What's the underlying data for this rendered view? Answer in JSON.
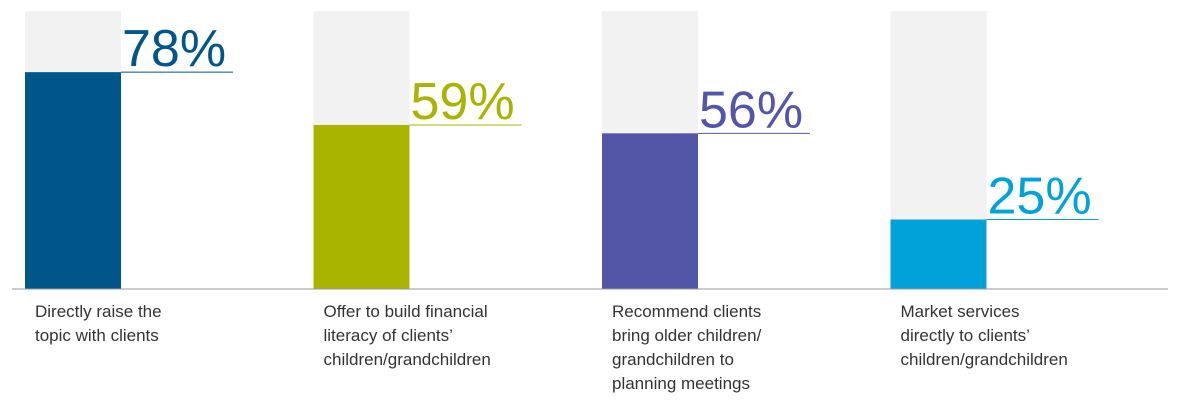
{
  "chart_data": {
    "type": "bar",
    "categories": [
      "Directly raise the\ntopic with clients",
      "Offer to build financial\nliteracy of clients’\nchildren/grandchildren",
      "Recommend clients\nbring older children/\ngrandchildren to\nplanning meetings",
      "Market services\ndirectly to clients’\nchildren/grandchildren"
    ],
    "values": [
      78,
      59,
      56,
      25
    ],
    "value_labels": [
      "78%",
      "59%",
      "56%",
      "25%"
    ],
    "colors": [
      "#005589",
      "#a9b400",
      "#5356a6",
      "#00a3d9"
    ],
    "ylim": [
      0,
      100
    ]
  }
}
